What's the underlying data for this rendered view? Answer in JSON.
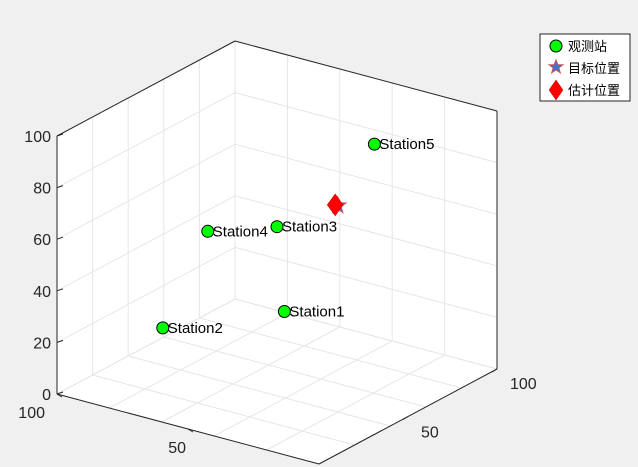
{
  "chart_data": {
    "type": "scatter",
    "dimensions": 3,
    "grid": true,
    "legend_position": "top-right (outside axes)",
    "xlim": [
      0,
      100
    ],
    "ylim": [
      0,
      100
    ],
    "zlim": [
      0,
      100
    ],
    "x_ticks": [
      "100",
      "50"
    ],
    "y_ticks": [
      "100",
      "50"
    ],
    "z_ticks": [
      "0",
      "20",
      "40",
      "60",
      "80",
      "100"
    ],
    "series": [
      {
        "name": "观测站",
        "marker": "circle",
        "color": "#00ff00",
        "points": [
          {
            "label": "Station1",
            "x": 20,
            "y": 10,
            "z": 50
          },
          {
            "label": "Station2",
            "x": 80,
            "y": 30,
            "z": 20
          },
          {
            "label": "Station3",
            "x": 50,
            "y": 50,
            "z": 60
          },
          {
            "label": "Station4",
            "x": 90,
            "y": 70,
            "z": 40
          },
          {
            "label": "Station5",
            "x": 40,
            "y": 90,
            "z": 80
          }
        ]
      },
      {
        "name": "目标位置",
        "marker": "star",
        "color": "#4472c4",
        "edge_color": "#d9534f",
        "points": [
          {
            "x": 20,
            "y": 40,
            "z": 80
          }
        ]
      },
      {
        "name": "估计位置",
        "marker": "diamond",
        "color": "#ff0000",
        "points": [
          {
            "x": 21,
            "y": 40,
            "z": 80
          }
        ]
      }
    ]
  },
  "legend": {
    "items": [
      {
        "label": "观测站",
        "icon": "green-circle-icon"
      },
      {
        "label": "目标位置",
        "icon": "blue-star-icon"
      },
      {
        "label": "估计位置",
        "icon": "red-diamond-icon"
      }
    ]
  }
}
